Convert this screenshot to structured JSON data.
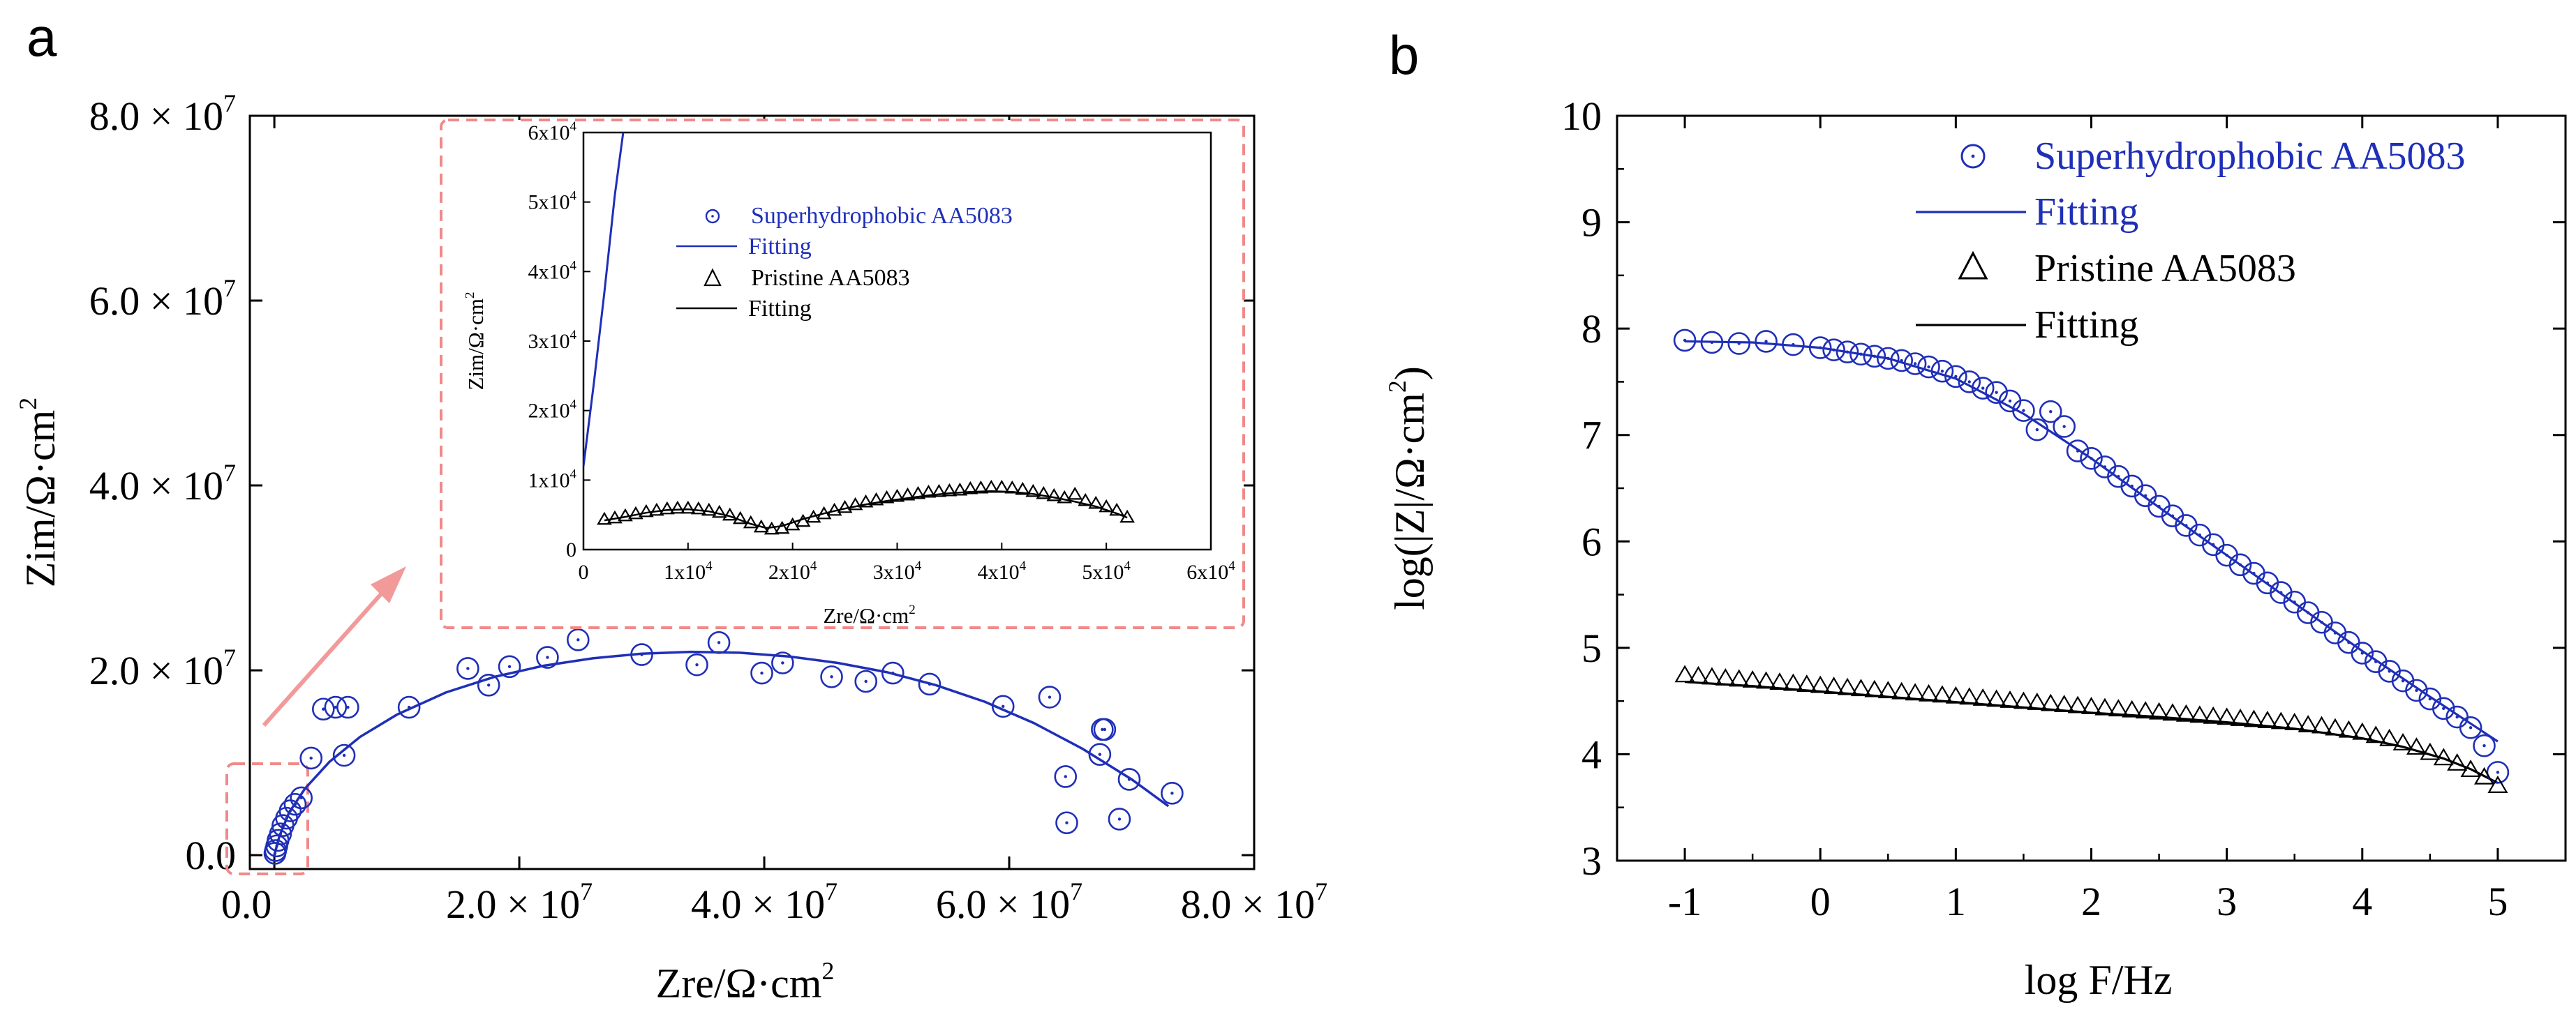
{
  "panels": {
    "a": "a",
    "b": "b"
  },
  "colors": {
    "blue": "#1f2fb8",
    "black": "#000000",
    "inset_box": "#f08a8a",
    "arrow": "#f29a9a"
  },
  "chart_data": [
    {
      "id": "a_main",
      "type": "scatter",
      "panel": "a",
      "title": "",
      "xlabel": "Zre/Ω·cm",
      "xlabel_sup": "2",
      "ylabel": "Zim/Ω·cm",
      "ylabel_sup": "2",
      "xlim": [
        -2000000.0,
        80000000.0
      ],
      "ylim": [
        -1500000.0,
        80000000.0
      ],
      "x_ticks": [
        {
          "v": 0,
          "m": "0.0",
          "e": ""
        },
        {
          "v": 20000000.0,
          "m": "2.0 × 10",
          "e": "7"
        },
        {
          "v": 40000000.0,
          "m": "4.0 × 10",
          "e": "7"
        },
        {
          "v": 60000000.0,
          "m": "6.0 × 10",
          "e": "7"
        },
        {
          "v": 80000000.0,
          "m": "8.0 × 10",
          "e": "7"
        }
      ],
      "y_ticks": [
        {
          "v": 0,
          "m": "0.0",
          "e": ""
        },
        {
          "v": 20000000.0,
          "m": "2.0 × 10",
          "e": "7"
        },
        {
          "v": 40000000.0,
          "m": "4.0 × 10",
          "e": "7"
        },
        {
          "v": 60000000.0,
          "m": "6.0 × 10",
          "e": "7"
        },
        {
          "v": 80000000.0,
          "m": "8.0 × 10",
          "e": "7"
        }
      ],
      "series": [
        {
          "name": "Superhydrophobic AA5083",
          "marker": "circle",
          "color": "#1f2fb8",
          "x": [
            50000.0,
            100000.0,
            200000.0,
            300000.0,
            500000.0,
            700000.0,
            1000000.0,
            1300000.0,
            1700000.0,
            2200000.0,
            3000000.0,
            4000000.0,
            5000000.0,
            5700000.0,
            6000000.0,
            11000000.0,
            15800000.0,
            17500000.0,
            19200000.0,
            22300000.0,
            24800000.0,
            30000000.0,
            34500000.0,
            36300000.0,
            39800000.0,
            41500000.0,
            45500000.0,
            48300000.0,
            50500000.0,
            53500000.0,
            59500000.0,
            63300000.0,
            64600000.0,
            64700000.0,
            67400000.0,
            67600000.0,
            67800000.0,
            69000000.0,
            69800000.0,
            73300000.0
          ],
          "y": [
            200000.0,
            500000.0,
            1000000.0,
            1600000.0,
            2300000.0,
            3200000.0,
            4000000.0,
            4800000.0,
            5500000.0,
            6200000.0,
            10500000.0,
            15800000.0,
            16000000.0,
            10800000.0,
            16000000.0,
            16000000.0,
            20200000.0,
            18400000.0,
            20400000.0,
            21400000.0,
            23300000.0,
            21700000.0,
            20600000.0,
            23000000.0,
            19700000.0,
            20800000.0,
            19300000.0,
            18800000.0,
            19700000.0,
            18500000.0,
            16100000.0,
            17100000.0,
            8500000.0,
            3500000.0,
            10900000.0,
            13600000.0,
            13600000.0,
            3900000.0,
            8200000.0,
            6700000.0
          ]
        },
        {
          "name": "Fitting",
          "line": true,
          "color": "#1f2fb8",
          "x": [
            0,
            400000.0,
            1200000.0,
            2500000.0,
            4500000.0,
            7000000.0,
            10000000.0,
            14000000.0,
            18000000.0,
            22000000.0,
            26000000.0,
            30000000.0,
            34000000.0,
            38000000.0,
            42000000.0,
            46000000.0,
            50000000.0,
            54000000.0,
            58000000.0,
            62000000.0,
            66000000.0,
            70000000.0,
            73000000.0
          ],
          "y": [
            0,
            2000000.0,
            4600000.0,
            7200000.0,
            10100000.0,
            12800000.0,
            15200000.0,
            17600000.0,
            19300000.0,
            20500000.0,
            21300000.0,
            21800000.0,
            22000000.0,
            21900000.0,
            21500000.0,
            20800000.0,
            19800000.0,
            18400000.0,
            16600000.0,
            14300000.0,
            11500000.0,
            8200000.0,
            5300000.0
          ]
        }
      ]
    },
    {
      "id": "a_inset",
      "type": "scatter",
      "panel": "a",
      "xlabel": "Zre/Ω·cm",
      "xlabel_sup": "2",
      "ylabel": "Zim/Ω·cm",
      "ylabel_sup": "2",
      "xlim": [
        0,
        60000
      ],
      "ylim": [
        0,
        60000
      ],
      "x_ticks": [
        {
          "v": 0,
          "m": "0",
          "e": ""
        },
        {
          "v": 10000,
          "m": "1x10",
          "e": "4"
        },
        {
          "v": 20000,
          "m": "2x10",
          "e": "4"
        },
        {
          "v": 30000,
          "m": "3x10",
          "e": "4"
        },
        {
          "v": 40000,
          "m": "4x10",
          "e": "4"
        },
        {
          "v": 50000,
          "m": "5x10",
          "e": "4"
        },
        {
          "v": 60000,
          "m": "6x10",
          "e": "4"
        }
      ],
      "y_ticks": [
        {
          "v": 0,
          "m": "0",
          "e": ""
        },
        {
          "v": 10000,
          "m": "1x10",
          "e": "4"
        },
        {
          "v": 20000,
          "m": "2x10",
          "e": "4"
        },
        {
          "v": 30000,
          "m": "3x10",
          "e": "4"
        },
        {
          "v": 40000,
          "m": "4x10",
          "e": "4"
        },
        {
          "v": 50000,
          "m": "5x10",
          "e": "4"
        },
        {
          "v": 60000,
          "m": "6x10",
          "e": "4"
        }
      ],
      "legend": [
        {
          "label": "Superhydrophobic AA5083",
          "marker": "circle",
          "color": "#1f2fb8"
        },
        {
          "label": "Fitting",
          "marker": "line",
          "color": "#1f2fb8"
        },
        {
          "label": "Pristine AA5083",
          "marker": "triangle",
          "color": "#000000"
        },
        {
          "label": "Fitting",
          "marker": "line",
          "color": "#000000"
        }
      ],
      "series": [
        {
          "name": "Fitting",
          "line": true,
          "color": "#1f2fb8",
          "x": [
            0,
            1000,
            2000,
            3000,
            3800
          ],
          "y": [
            12000,
            24000,
            37000,
            51000,
            60000
          ]
        },
        {
          "name": "Pristine AA5083",
          "marker": "triangle",
          "color": "#000000",
          "x": [
            2000,
            3000,
            4000,
            5000,
            6000,
            7000,
            8000,
            9000,
            10000,
            11000,
            12000,
            13000,
            14000,
            15000,
            16000,
            17000,
            18000,
            19000,
            20000,
            21000,
            22000,
            23000,
            24000,
            25000,
            26000,
            27000,
            28000,
            29000,
            30000,
            31000,
            32000,
            33000,
            34000,
            35000,
            36000,
            37000,
            38000,
            39000,
            40000,
            41000,
            42000,
            43000,
            44000,
            45000,
            46000,
            47000,
            48000,
            49000,
            50000,
            51000,
            52000
          ],
          "y": [
            4300,
            4500,
            4800,
            5100,
            5400,
            5600,
            5800,
            5900,
            5900,
            5800,
            5600,
            5300,
            4900,
            4400,
            3800,
            3200,
            2900,
            3000,
            3500,
            4000,
            4600,
            5100,
            5600,
            6000,
            6400,
            6800,
            7100,
            7400,
            7600,
            7800,
            8000,
            8200,
            8300,
            8400,
            8500,
            8700,
            8800,
            8900,
            8900,
            8800,
            8600,
            8300,
            8000,
            7700,
            7400,
            7900,
            7000,
            6600,
            6100,
            5600,
            4600
          ]
        },
        {
          "name": "Fitting",
          "line": true,
          "color": "#000000",
          "x": [
            2000,
            4000,
            6000,
            8000,
            10000,
            12000,
            14000,
            16000,
            17500,
            19000,
            21000,
            23000,
            25000,
            27000,
            29000,
            31000,
            33000,
            35000,
            37000,
            39000,
            41000,
            43000,
            45000,
            47000,
            49000,
            51000,
            52000
          ],
          "y": [
            4200,
            4700,
            5300,
            5700,
            5800,
            5500,
            4800,
            3700,
            3100,
            3400,
            4400,
            5200,
            5900,
            6500,
            7000,
            7400,
            7800,
            8100,
            8300,
            8400,
            8300,
            8000,
            7500,
            6900,
            6200,
            5200,
            4600
          ]
        }
      ]
    },
    {
      "id": "b",
      "type": "scatter",
      "panel": "b",
      "title": "",
      "xlabel": "log F/Hz",
      "ylabel_pre": "log(|Z|/Ω·cm",
      "ylabel_sup": "2",
      "ylabel_post": ")",
      "xlim": [
        -1.5,
        5.5
      ],
      "ylim": [
        3,
        10
      ],
      "x_ticks": [
        -1,
        0,
        1,
        2,
        3,
        4,
        5
      ],
      "y_ticks": [
        3,
        4,
        5,
        6,
        7,
        8,
        9,
        10
      ],
      "legend": [
        {
          "label": "Superhydrophobic AA5083",
          "marker": "circle",
          "color": "#1f2fb8"
        },
        {
          "label": "Fitting",
          "marker": "line",
          "color": "#1f2fb8"
        },
        {
          "label": "Pristine AA5083",
          "marker": "triangle",
          "color": "#000000"
        },
        {
          "label": "Fitting",
          "marker": "line",
          "color": "#000000"
        }
      ],
      "series": [
        {
          "name": "Superhydrophobic AA5083",
          "marker": "circle",
          "color": "#1f2fb8",
          "x": [
            -1.0,
            -0.8,
            -0.6,
            -0.4,
            -0.2,
            0.0,
            0.1,
            0.2,
            0.3,
            0.4,
            0.5,
            0.6,
            0.7,
            0.8,
            0.9,
            1.0,
            1.1,
            1.2,
            1.3,
            1.4,
            1.5,
            1.6,
            1.7,
            1.8,
            1.9,
            2.0,
            2.1,
            2.2,
            2.3,
            2.4,
            2.5,
            2.6,
            2.7,
            2.8,
            2.9,
            3.0,
            3.1,
            3.2,
            3.3,
            3.4,
            3.5,
            3.6,
            3.7,
            3.8,
            3.9,
            4.0,
            4.1,
            4.2,
            4.3,
            4.4,
            4.5,
            4.6,
            4.7,
            4.8,
            4.9,
            5.0
          ],
          "y": [
            7.89,
            7.87,
            7.86,
            7.88,
            7.85,
            7.82,
            7.8,
            7.78,
            7.76,
            7.74,
            7.72,
            7.7,
            7.67,
            7.64,
            7.6,
            7.55,
            7.5,
            7.44,
            7.4,
            7.32,
            7.23,
            7.05,
            7.22,
            7.08,
            6.85,
            6.78,
            6.7,
            6.61,
            6.52,
            6.43,
            6.33,
            6.24,
            6.15,
            6.06,
            5.97,
            5.87,
            5.78,
            5.7,
            5.61,
            5.52,
            5.43,
            5.33,
            5.24,
            5.14,
            5.05,
            4.95,
            4.87,
            4.78,
            4.69,
            4.6,
            4.52,
            4.43,
            4.35,
            4.25,
            4.08,
            3.83
          ]
        },
        {
          "name": "Fitting",
          "line": true,
          "color": "#1f2fb8",
          "x": [
            -1.0,
            -0.5,
            0.0,
            0.5,
            1.0,
            1.5,
            2.0,
            2.5,
            3.0,
            3.5,
            4.0,
            4.5,
            5.0
          ],
          "y": [
            7.88,
            7.87,
            7.82,
            7.72,
            7.53,
            7.2,
            6.78,
            6.32,
            5.87,
            5.42,
            4.97,
            4.54,
            4.12
          ]
        },
        {
          "name": "Pristine AA5083",
          "marker": "triangle",
          "color": "#000000",
          "x": [
            -1.0,
            -0.9,
            -0.8,
            -0.7,
            -0.6,
            -0.5,
            -0.4,
            -0.3,
            -0.2,
            -0.1,
            0.0,
            0.1,
            0.2,
            0.3,
            0.4,
            0.5,
            0.6,
            0.7,
            0.8,
            0.9,
            1.0,
            1.1,
            1.2,
            1.3,
            1.4,
            1.5,
            1.6,
            1.7,
            1.8,
            1.9,
            2.0,
            2.1,
            2.2,
            2.3,
            2.4,
            2.5,
            2.6,
            2.7,
            2.8,
            2.9,
            3.0,
            3.1,
            3.2,
            3.3,
            3.4,
            3.5,
            3.6,
            3.7,
            3.8,
            3.9,
            4.0,
            4.1,
            4.2,
            4.3,
            4.4,
            4.5,
            4.6,
            4.7,
            4.8,
            4.9,
            5.0
          ],
          "y": [
            4.74,
            4.73,
            4.72,
            4.71,
            4.7,
            4.69,
            4.68,
            4.67,
            4.66,
            4.65,
            4.64,
            4.63,
            4.62,
            4.61,
            4.6,
            4.59,
            4.58,
            4.57,
            4.56,
            4.55,
            4.54,
            4.53,
            4.52,
            4.51,
            4.5,
            4.49,
            4.48,
            4.47,
            4.46,
            4.45,
            4.44,
            4.43,
            4.42,
            4.41,
            4.4,
            4.39,
            4.38,
            4.37,
            4.36,
            4.35,
            4.34,
            4.33,
            4.32,
            4.31,
            4.3,
            4.29,
            4.27,
            4.26,
            4.24,
            4.22,
            4.2,
            4.17,
            4.14,
            4.1,
            4.06,
            4.01,
            3.96,
            3.91,
            3.85,
            3.78,
            3.7
          ]
        },
        {
          "name": "Fitting",
          "line": true,
          "color": "#000000",
          "x": [
            -1.0,
            -0.5,
            0.0,
            0.5,
            1.0,
            1.5,
            2.0,
            2.5,
            3.0,
            3.5,
            4.0,
            4.3,
            4.6,
            4.8,
            5.0
          ],
          "y": [
            4.68,
            4.64,
            4.59,
            4.54,
            4.49,
            4.44,
            4.39,
            4.35,
            4.3,
            4.24,
            4.15,
            4.07,
            3.96,
            3.86,
            3.73
          ]
        }
      ]
    }
  ]
}
